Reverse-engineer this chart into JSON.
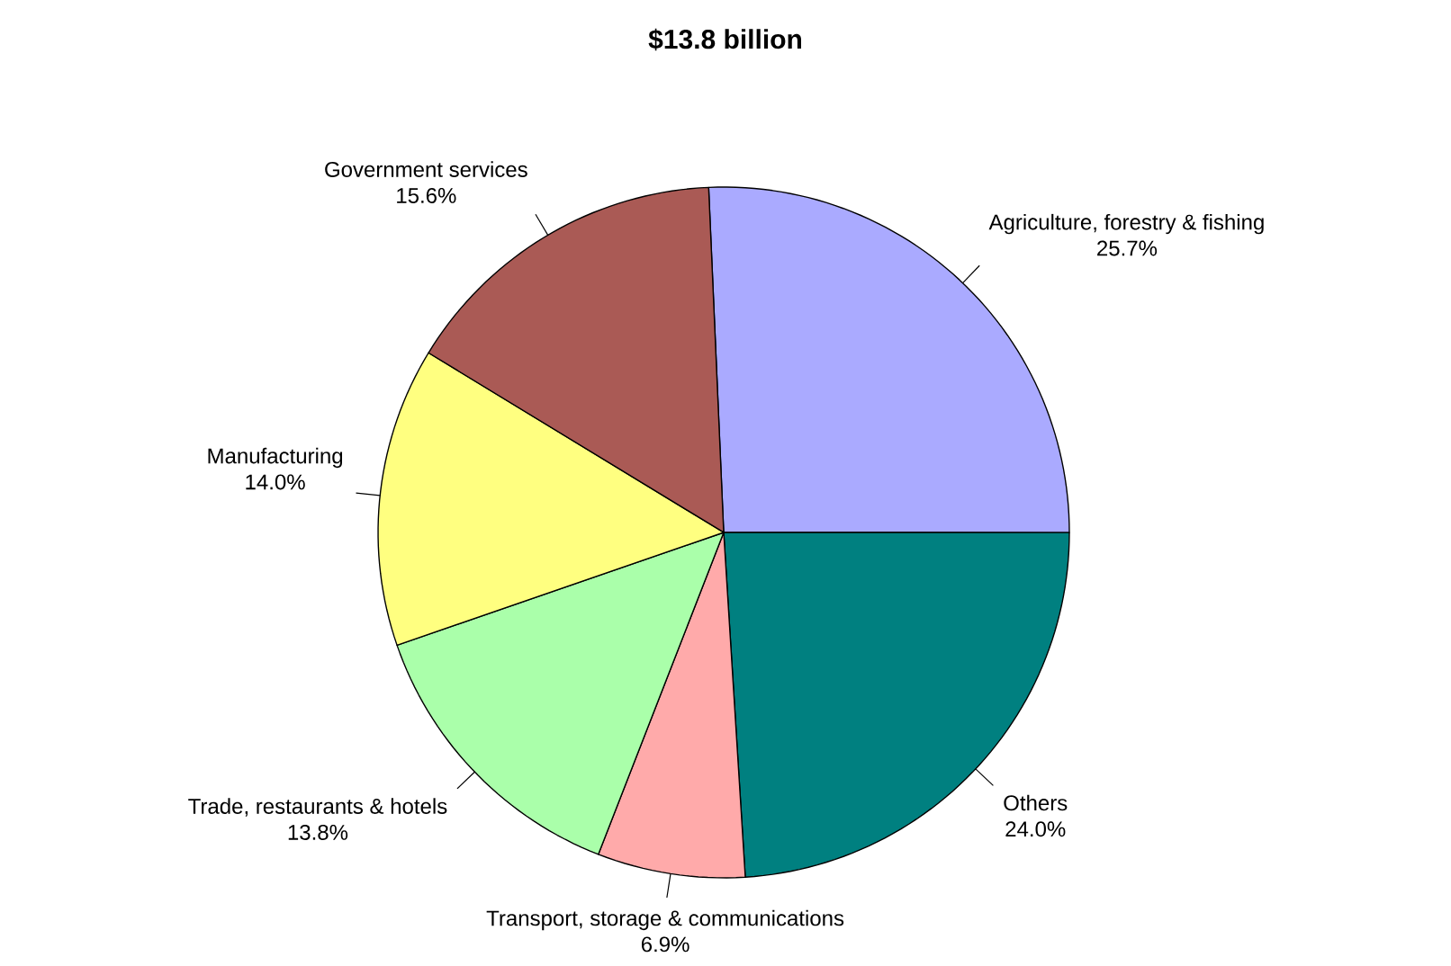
{
  "chart_data": {
    "type": "pie",
    "title": "$13.8 billion",
    "categories": [
      "Agriculture, forestry & fishing",
      "Others",
      "Transport, storage & communications",
      "Trade, restaurants & hotels",
      "Manufacturing",
      "Government services"
    ],
    "values": [
      25.7,
      24.0,
      6.9,
      13.8,
      14.0,
      15.6
    ],
    "value_labels": [
      "25.7%",
      "24.0%",
      "6.9%",
      "13.8%",
      "14.0%",
      "15.6%"
    ],
    "colors": [
      "#aaaaff",
      "#008080",
      "#ffaaaa",
      "#aaffaa",
      "#ffff80",
      "#aa5a55"
    ],
    "legend": false
  }
}
